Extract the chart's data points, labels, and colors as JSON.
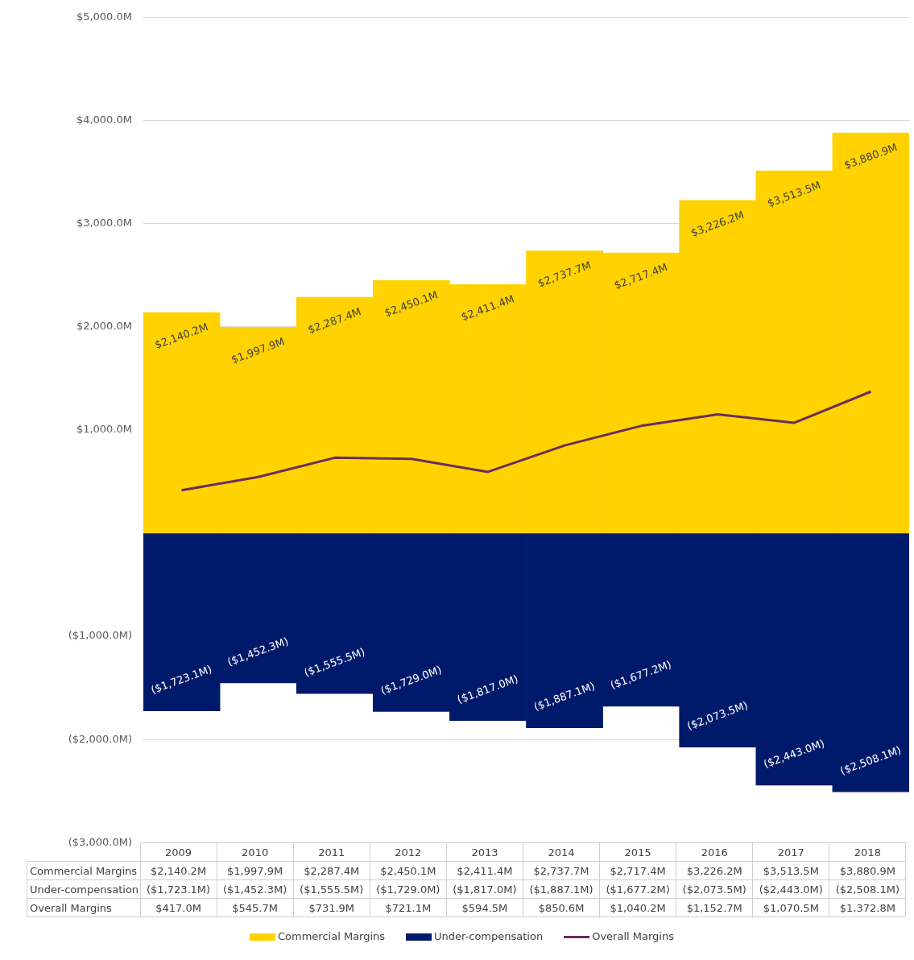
{
  "chart_data": {
    "type": "bar",
    "stacked": true,
    "categories": [
      "2009",
      "2010",
      "2011",
      "2012",
      "2013",
      "2014",
      "2015",
      "2016",
      "2017",
      "2018"
    ],
    "series": [
      {
        "name": "Commercial Margins",
        "color": "#ffd200",
        "values": [
          2140.2,
          1997.9,
          2287.4,
          2450.1,
          2411.4,
          2737.7,
          2717.4,
          3226.2,
          3513.5,
          3880.9
        ],
        "value_labels": [
          "$2,140.2M",
          "$1,997.9M",
          "$2,287.4M",
          "$2,450.1M",
          "$2,411.4M",
          "$2,737.7M",
          "$2,717.4M",
          "$3,226.2M",
          "$3,513.5M",
          "$3,880.9M"
        ]
      },
      {
        "name": "Under-compensation",
        "color": "#001a6b",
        "values": [
          -1723.1,
          -1452.3,
          -1555.5,
          -1729.0,
          -1817.0,
          -1887.1,
          -1677.2,
          -2073.5,
          -2443.0,
          -2508.1
        ],
        "value_labels": [
          "($1,723.1M)",
          "($1,452.3M)",
          "($1,555.5M)",
          "($1,729.0M)",
          "($1,817.0M)",
          "($1,887.1M)",
          "($1,677.2M)",
          "($2,073.5M)",
          "($2,443.0M)",
          "($2,508.1M)"
        ]
      },
      {
        "name": "Overall Margins",
        "type": "line",
        "color": "#6b2d5c",
        "values": [
          417.0,
          545.7,
          731.9,
          721.1,
          594.5,
          850.6,
          1040.2,
          1152.7,
          1070.5,
          1372.8
        ],
        "value_labels": [
          "$417.0M",
          "$545.7M",
          "$731.9M",
          "$721.1M",
          "$594.5M",
          "$850.6M",
          "$1,040.2M",
          "$1,152.7M",
          "$1,070.5M",
          "$1,372.8M"
        ]
      }
    ],
    "ylim": [
      -3000,
      5000
    ],
    "yticks": [
      {
        "value": -3000,
        "label": "($3,000.0M)"
      },
      {
        "value": -2000,
        "label": "($2,000.0M)"
      },
      {
        "value": -1000,
        "label": "($1,000.0M)"
      },
      {
        "value": 0,
        "label": null
      },
      {
        "value": 1000,
        "label": "$1,000.0M"
      },
      {
        "value": 2000,
        "label": "$2,000.0M"
      },
      {
        "value": 3000,
        "label": "$3,000.0M"
      },
      {
        "value": 4000,
        "label": "$4,000.0M"
      },
      {
        "value": 5000,
        "label": "$5,000.0M"
      }
    ],
    "grid": "y",
    "legend": "bottom",
    "marker": "none",
    "line_style": "solid",
    "tick_labels": "y"
  }
}
